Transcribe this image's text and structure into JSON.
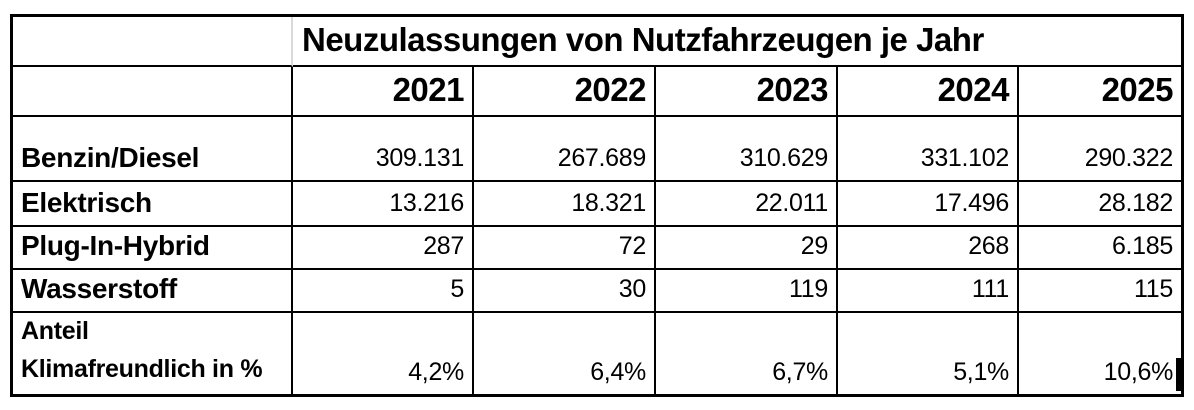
{
  "table": {
    "title": "Neuzulassungen von Nutzfahrzeugen je Jahr",
    "years": [
      "2021",
      "2022",
      "2023",
      "2024",
      "2025"
    ],
    "rows": [
      {
        "label": "Benzin/Diesel",
        "values": [
          "309.131",
          "267.689",
          "310.629",
          "331.102",
          "290.322"
        ]
      },
      {
        "label": "Elektrisch",
        "values": [
          "13.216",
          "18.321",
          "22.011",
          "17.496",
          "28.182"
        ]
      },
      {
        "label": "Plug-In-Hybrid",
        "values": [
          "287",
          "72",
          "29",
          "268",
          "6.185"
        ]
      },
      {
        "label": "Wasserstoff",
        "values": [
          "5",
          "30",
          "119",
          "111",
          "115"
        ]
      },
      {
        "label": "Anteil Klimafreundlich in %",
        "label_line1": "Anteil",
        "label_line2": "Klimafreundlich in %",
        "values": [
          "4,2%",
          "6,4%",
          "6,7%",
          "5,1%",
          "10,6%"
        ]
      }
    ]
  },
  "colors": {
    "border": "#000000",
    "merged_cell_divider": "#d9d9d9",
    "background": "#ffffff",
    "text": "#000000"
  },
  "chart_data": {
    "type": "table",
    "title": "Neuzulassungen von Nutzfahrzeugen je Jahr",
    "columns": [
      "",
      "2021",
      "2022",
      "2023",
      "2024",
      "2025"
    ],
    "rows": [
      [
        "Benzin/Diesel",
        "309.131",
        "267.689",
        "310.629",
        "331.102",
        "290.322"
      ],
      [
        "Elektrisch",
        "13.216",
        "18.321",
        "22.011",
        "17.496",
        "28.182"
      ],
      [
        "Plug-In-Hybrid",
        "287",
        "72",
        "29",
        "268",
        "6.185"
      ],
      [
        "Wasserstoff",
        "5",
        "30",
        "119",
        "111",
        "115"
      ],
      [
        "Anteil Klimafreundlich in %",
        "4,2%",
        "6,4%",
        "6,7%",
        "5,1%",
        "10,6%"
      ]
    ],
    "notes": "German number formatting: '.' thousands separator, ',' decimal separator"
  }
}
